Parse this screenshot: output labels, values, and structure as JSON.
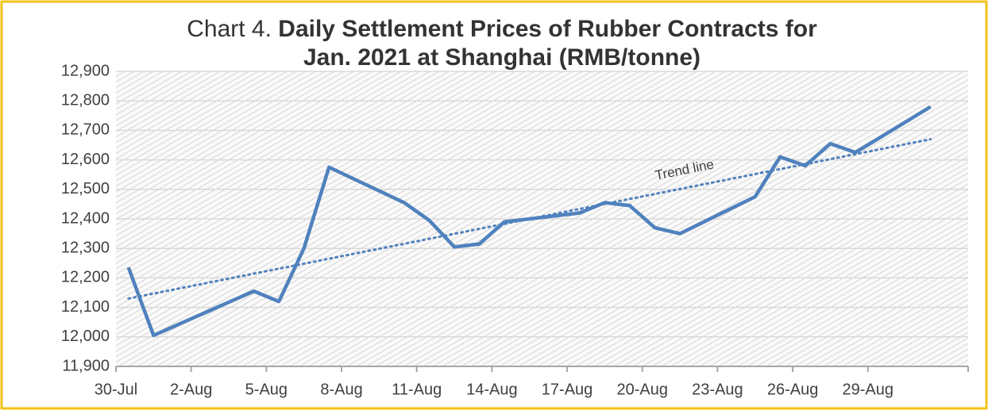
{
  "chart_data": {
    "type": "line",
    "title_number": "Chart 4.",
    "title_lines": [
      "Daily Settlement Prices of Rubber Contracts for",
      "Jan. 2021 at Shanghai (RMB/tonne)"
    ],
    "x": [
      "30-Jul",
      "31-Jul",
      "4-Aug",
      "5-Aug",
      "6-Aug",
      "7-Aug",
      "10-Aug",
      "11-Aug",
      "12-Aug",
      "13-Aug",
      "14-Aug",
      "17-Aug",
      "18-Aug",
      "19-Aug",
      "20-Aug",
      "21-Aug",
      "24-Aug",
      "25-Aug",
      "26-Aug",
      "27-Aug",
      "28-Aug",
      "31-Aug"
    ],
    "series": [
      {
        "color": "#4f81bd",
        "values": [
          12235,
          12005,
          12155,
          12120,
          12300,
          12575,
          12455,
          12395,
          12305,
          12315,
          12390,
          12420,
          12455,
          12445,
          12370,
          12350,
          12475,
          12610,
          12580,
          12655,
          12625,
          12780
        ]
      }
    ],
    "trend": {
      "label": "Trend line",
      "x": [
        "30-Jul",
        "31-Aug"
      ],
      "values": [
        12130,
        12670
      ],
      "color": "#4f81bd"
    },
    "xlim": [
      "30-Jul",
      "1-Sep"
    ],
    "xticks": [
      "30-Jul",
      "2-Aug",
      "5-Aug",
      "8-Aug",
      "11-Aug",
      "14-Aug",
      "17-Aug",
      "20-Aug",
      "23-Aug",
      "26-Aug",
      "29-Aug"
    ],
    "ylim": [
      11900,
      12900
    ],
    "yticks": [
      {
        "value": 11900,
        "label": "11,900"
      },
      {
        "value": 12000,
        "label": "12,000"
      },
      {
        "value": 12100,
        "label": "12,100"
      },
      {
        "value": 12200,
        "label": "12,200"
      },
      {
        "value": 12300,
        "label": "12,300"
      },
      {
        "value": 12400,
        "label": "12,400"
      },
      {
        "value": 12500,
        "label": "12,500"
      },
      {
        "value": 12600,
        "label": "12,600"
      },
      {
        "value": 12700,
        "label": "12,700"
      },
      {
        "value": 12800,
        "label": "12,800"
      },
      {
        "value": 12900,
        "label": "12,900"
      }
    ],
    "grid": true
  }
}
